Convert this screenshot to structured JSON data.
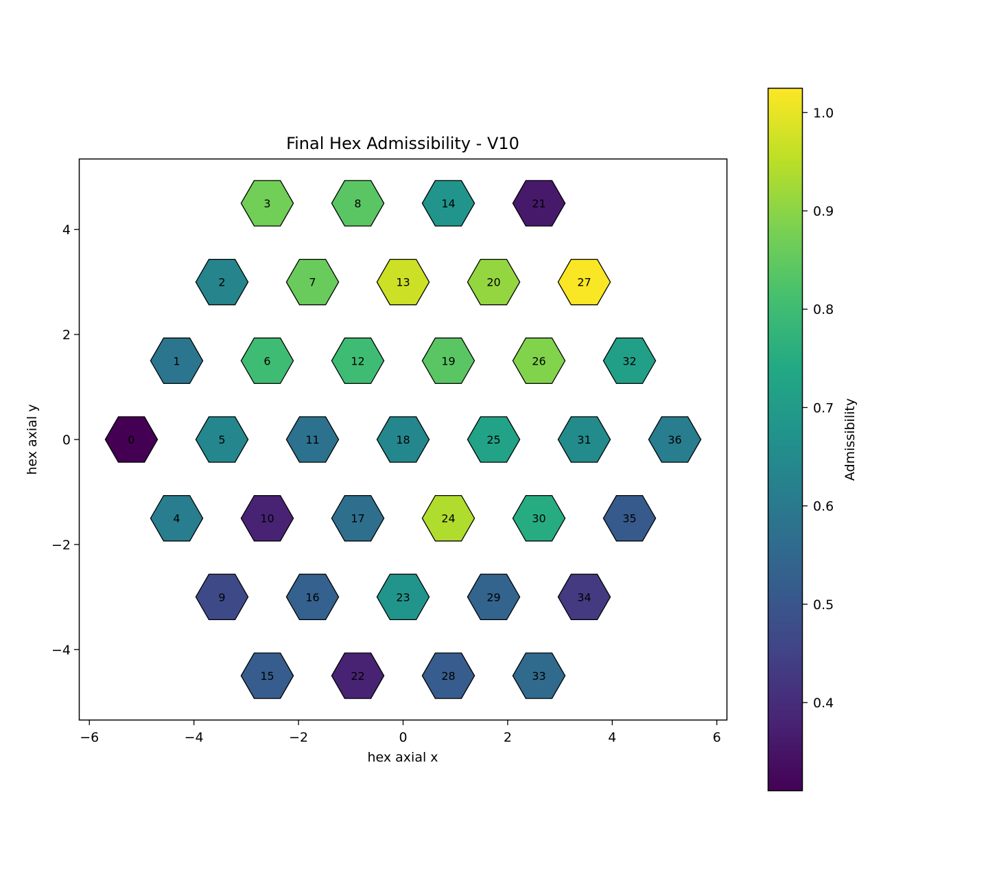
{
  "chart_data": {
    "type": "hexbin-map",
    "title": "Final Hex Admissibility - V10",
    "xlabel": "hex axial x",
    "ylabel": "hex axial y",
    "xlim": [
      -6.2,
      6.2
    ],
    "ylim": [
      -5.35,
      5.35
    ],
    "xticks": [
      -6,
      -4,
      -2,
      0,
      2,
      4,
      6
    ],
    "yticks": [
      -4,
      -2,
      0,
      2,
      4
    ],
    "xtick_labels": [
      "−6",
      "−4",
      "−2",
      "0",
      "2",
      "4",
      "6"
    ],
    "ytick_labels": [
      "−4",
      "−2",
      "0",
      "2",
      "4"
    ],
    "colormap": "viridis",
    "colorbar": {
      "label": "Admissibility",
      "vmin": 0.31,
      "vmax": 1.025,
      "ticks": [
        0.4,
        0.5,
        0.6,
        0.7,
        0.8,
        0.9,
        1.0
      ],
      "tick_labels": [
        "0.4",
        "0.5",
        "0.6",
        "0.7",
        "0.8",
        "0.9",
        "1.0"
      ]
    },
    "hexes": [
      {
        "id": "0",
        "x": -5.196,
        "y": 0.0,
        "value": 0.31
      },
      {
        "id": "1",
        "x": -4.33,
        "y": 1.5,
        "value": 0.59
      },
      {
        "id": "2",
        "x": -3.464,
        "y": 3.0,
        "value": 0.63
      },
      {
        "id": "3",
        "x": -2.598,
        "y": 4.5,
        "value": 0.87
      },
      {
        "id": "4",
        "x": -4.33,
        "y": -1.5,
        "value": 0.61
      },
      {
        "id": "5",
        "x": -3.464,
        "y": 0.0,
        "value": 0.64
      },
      {
        "id": "6",
        "x": -2.598,
        "y": 1.5,
        "value": 0.8
      },
      {
        "id": "7",
        "x": -1.732,
        "y": 3.0,
        "value": 0.86
      },
      {
        "id": "8",
        "x": -0.866,
        "y": 4.5,
        "value": 0.84
      },
      {
        "id": "9",
        "x": -3.464,
        "y": -3.0,
        "value": 0.47
      },
      {
        "id": "10",
        "x": -2.598,
        "y": -1.5,
        "value": 0.38
      },
      {
        "id": "11",
        "x": -1.732,
        "y": 0.0,
        "value": 0.58
      },
      {
        "id": "12",
        "x": -0.866,
        "y": 1.5,
        "value": 0.8
      },
      {
        "id": "13",
        "x": 0.0,
        "y": 3.0,
        "value": 0.97
      },
      {
        "id": "14",
        "x": 0.866,
        "y": 4.5,
        "value": 0.68
      },
      {
        "id": "15",
        "x": -2.598,
        "y": -4.5,
        "value": 0.52
      },
      {
        "id": "16",
        "x": -1.732,
        "y": -3.0,
        "value": 0.53
      },
      {
        "id": "17",
        "x": -0.866,
        "y": -1.5,
        "value": 0.57
      },
      {
        "id": "18",
        "x": 0.0,
        "y": 0.0,
        "value": 0.64
      },
      {
        "id": "19",
        "x": 0.866,
        "y": 1.5,
        "value": 0.84
      },
      {
        "id": "20",
        "x": 1.732,
        "y": 3.0,
        "value": 0.91
      },
      {
        "id": "21",
        "x": 2.598,
        "y": 4.5,
        "value": 0.36
      },
      {
        "id": "22",
        "x": -0.866,
        "y": -4.5,
        "value": 0.38
      },
      {
        "id": "23",
        "x": 0.0,
        "y": -3.0,
        "value": 0.68
      },
      {
        "id": "24",
        "x": 0.866,
        "y": -1.5,
        "value": 0.94
      },
      {
        "id": "25",
        "x": 1.732,
        "y": 0.0,
        "value": 0.72
      },
      {
        "id": "26",
        "x": 2.598,
        "y": 1.5,
        "value": 0.89
      },
      {
        "id": "27",
        "x": 3.464,
        "y": 3.0,
        "value": 1.02
      },
      {
        "id": "28",
        "x": 0.866,
        "y": -4.5,
        "value": 0.52
      },
      {
        "id": "29",
        "x": 1.732,
        "y": -3.0,
        "value": 0.54
      },
      {
        "id": "30",
        "x": 2.598,
        "y": -1.5,
        "value": 0.75
      },
      {
        "id": "31",
        "x": 3.464,
        "y": 0.0,
        "value": 0.65
      },
      {
        "id": "32",
        "x": 4.33,
        "y": 1.5,
        "value": 0.71
      },
      {
        "id": "33",
        "x": 2.598,
        "y": -4.5,
        "value": 0.56
      },
      {
        "id": "34",
        "x": 3.464,
        "y": -3.0,
        "value": 0.43
      },
      {
        "id": "35",
        "x": 4.33,
        "y": -1.5,
        "value": 0.51
      },
      {
        "id": "36",
        "x": 5.196,
        "y": 0.0,
        "value": 0.61
      }
    ]
  }
}
